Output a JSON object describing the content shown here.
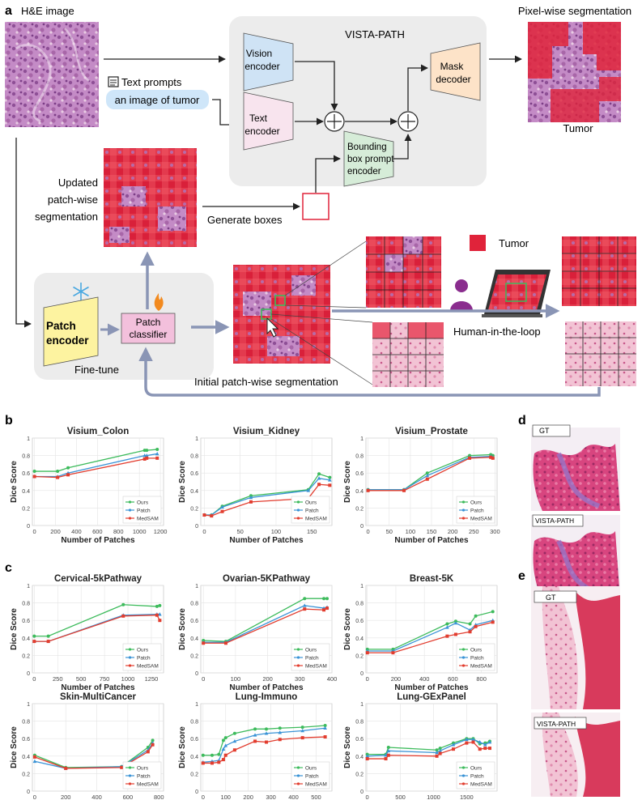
{
  "panel_a": {
    "label": "a",
    "he_image_title": "H&E image",
    "pixel_seg_title": "Pixel-wise segmentation",
    "tumor_caption": "Tumor",
    "vista_path_title": "VISTA-PATH",
    "vision_encoder": [
      "Vision",
      "encoder"
    ],
    "text_encoder": [
      "Text",
      "encoder"
    ],
    "mask_decoder": [
      "Mask",
      "decoder"
    ],
    "bbox_encoder": [
      "Bounding",
      "box prompt",
      "encoder"
    ],
    "text_prompts_label": "Text prompts",
    "prompt_example": "an image of tumor",
    "updated_seg": [
      "Updated",
      "patch-wise",
      "segmentation"
    ],
    "generate_boxes": "Generate boxes",
    "patch_encoder": [
      "Patch",
      "encoder"
    ],
    "patch_classifier": [
      "Patch",
      "classifier"
    ],
    "fine_tune": "Fine-tune",
    "initial_seg": "Initial patch-wise segmentation",
    "legend_tumor": "Tumor",
    "human_loop": "Human-in-the-loop",
    "colors": {
      "tumor": "#e0233a",
      "tissue": "#b878b8",
      "gray_box": "#ececec",
      "vision": "#cfe3f5",
      "text": "#f8e4ee",
      "mask": "#fde3c8",
      "bbox": "#d6ecd8",
      "patch_enc": "#fdf3a0",
      "patch_cls": "#f3c0dc",
      "prompt": "#cfe6f9",
      "arrow": "#8a95b5"
    }
  },
  "panel_b": {
    "label": "b"
  },
  "panel_c": {
    "label": "c"
  },
  "panel_d": {
    "label": "d",
    "gt": "GT",
    "pred": "VISTA-PATH"
  },
  "panel_e": {
    "label": "e",
    "gt": "GT",
    "pred": "VISTA-PATH"
  },
  "axis": {
    "xlabel": "Number of Patches",
    "ylabel": "Dice Score"
  },
  "series_colors": {
    "Ours": "#3dbb5c",
    "Patch": "#3a93d6",
    "MedSAM": "#e23d2f"
  },
  "chart_data": [
    {
      "type": "line",
      "title": "Visium_Colon",
      "xlabel": "Number of Patches",
      "ylabel": "Dice Score",
      "xlim": [
        -20,
        1230
      ],
      "ylim": [
        0,
        1.0
      ],
      "xticks": [
        0,
        200,
        400,
        600,
        800,
        1000,
        1200
      ],
      "yticks": [
        0,
        0.2,
        0.4,
        0.6,
        0.8,
        1.0
      ],
      "legend": "bottom-right",
      "series": [
        {
          "name": "Ours",
          "x": [
            0,
            220,
            320,
            1050,
            1070,
            1170
          ],
          "y": [
            0.62,
            0.62,
            0.66,
            0.86,
            0.86,
            0.87
          ]
        },
        {
          "name": "Patch",
          "x": [
            0,
            220,
            320,
            1050,
            1070,
            1170
          ],
          "y": [
            0.56,
            0.56,
            0.6,
            0.8,
            0.8,
            0.82
          ]
        },
        {
          "name": "MedSAM",
          "x": [
            0,
            220,
            320,
            1050,
            1070,
            1170
          ],
          "y": [
            0.56,
            0.55,
            0.58,
            0.76,
            0.77,
            0.77
          ]
        }
      ]
    },
    {
      "type": "line",
      "title": "Visium_Kidney",
      "xlabel": "Number of Patches",
      "ylabel": "Dice Score",
      "xlim": [
        -5,
        178
      ],
      "ylim": [
        0,
        1.0
      ],
      "xticks": [
        0,
        50,
        100,
        150
      ],
      "yticks": [
        0,
        0.2,
        0.4,
        0.6,
        0.8,
        1.0
      ],
      "legend": "bottom-right",
      "series": [
        {
          "name": "Ours",
          "x": [
            0,
            10,
            25,
            65,
            145,
            160,
            175
          ],
          "y": [
            0.12,
            0.12,
            0.22,
            0.34,
            0.41,
            0.59,
            0.55
          ]
        },
        {
          "name": "Patch",
          "x": [
            0,
            10,
            25,
            65,
            145,
            160,
            175
          ],
          "y": [
            0.12,
            0.12,
            0.21,
            0.32,
            0.4,
            0.54,
            0.52
          ]
        },
        {
          "name": "MedSAM",
          "x": [
            0,
            10,
            25,
            65,
            145,
            160,
            175
          ],
          "y": [
            0.12,
            0.11,
            0.16,
            0.27,
            0.31,
            0.47,
            0.46
          ]
        }
      ]
    },
    {
      "type": "line",
      "title": "Visium_Prostate",
      "xlabel": "Number of Patches",
      "ylabel": "Dice Score",
      "xlim": [
        -5,
        305
      ],
      "ylim": [
        0,
        1.0
      ],
      "xticks": [
        0,
        50,
        100,
        150,
        200,
        250,
        300
      ],
      "yticks": [
        0,
        0.2,
        0.4,
        0.6,
        0.8,
        1.0
      ],
      "legend": "bottom-right",
      "series": [
        {
          "name": "Ours",
          "x": [
            0,
            85,
            140,
            240,
            290,
            295
          ],
          "y": [
            0.41,
            0.41,
            0.6,
            0.8,
            0.81,
            0.8
          ]
        },
        {
          "name": "Patch",
          "x": [
            0,
            85,
            140,
            240,
            290,
            295
          ],
          "y": [
            0.41,
            0.41,
            0.57,
            0.78,
            0.79,
            0.78
          ]
        },
        {
          "name": "MedSAM",
          "x": [
            0,
            85,
            140,
            240,
            290,
            295
          ],
          "y": [
            0.4,
            0.4,
            0.53,
            0.77,
            0.78,
            0.77
          ]
        }
      ]
    },
    {
      "type": "line",
      "title": "Cervical-5kPathway",
      "xlabel": "Number of Patches",
      "ylabel": "Dice Score",
      "xlim": [
        -20,
        1380
      ],
      "ylim": [
        0,
        1.0
      ],
      "xticks": [
        0,
        250,
        500,
        750,
        1000,
        1250
      ],
      "yticks": [
        0,
        0.2,
        0.4,
        0.6,
        0.8,
        1.0
      ],
      "legend": "bottom-right",
      "series": [
        {
          "name": "Ours",
          "x": [
            0,
            150,
            950,
            1310,
            1340
          ],
          "y": [
            0.42,
            0.42,
            0.78,
            0.76,
            0.77
          ]
        },
        {
          "name": "Patch",
          "x": [
            0,
            150,
            950,
            1310,
            1340
          ],
          "y": [
            0.36,
            0.36,
            0.66,
            0.67,
            0.67
          ]
        },
        {
          "name": "MedSAM",
          "x": [
            0,
            150,
            950,
            1310,
            1340
          ],
          "y": [
            0.36,
            0.36,
            0.65,
            0.66,
            0.6
          ]
        }
      ]
    },
    {
      "type": "line",
      "title": "Ovarian-5KPathway",
      "xlabel": "Number of Patches",
      "ylabel": "Dice Score",
      "xlim": [
        -8,
        400
      ],
      "ylim": [
        0,
        1.0
      ],
      "xticks": [
        0,
        100,
        200,
        300,
        400
      ],
      "yticks": [
        0,
        0.2,
        0.4,
        0.6,
        0.8,
        1.0
      ],
      "legend": "bottom-right",
      "series": [
        {
          "name": "Ours",
          "x": [
            0,
            70,
            315,
            375,
            385
          ],
          "y": [
            0.37,
            0.36,
            0.85,
            0.85,
            0.85
          ]
        },
        {
          "name": "Patch",
          "x": [
            0,
            70,
            315,
            375,
            385
          ],
          "y": [
            0.35,
            0.35,
            0.77,
            0.74,
            0.75
          ]
        },
        {
          "name": "MedSAM",
          "x": [
            0,
            70,
            315,
            375,
            385
          ],
          "y": [
            0.34,
            0.34,
            0.73,
            0.72,
            0.74
          ]
        }
      ]
    },
    {
      "type": "line",
      "title": "Breast-5K",
      "xlabel": "Number of Patches",
      "ylabel": "Dice Score",
      "xlim": [
        -10,
        910
      ],
      "ylim": [
        0,
        1.0
      ],
      "xticks": [
        0,
        200,
        400,
        600,
        800
      ],
      "yticks": [
        0,
        0.2,
        0.4,
        0.6,
        0.8,
        1.0
      ],
      "legend": "bottom-right",
      "series": [
        {
          "name": "Ours",
          "x": [
            0,
            180,
            560,
            620,
            720,
            760,
            880
          ],
          "y": [
            0.27,
            0.27,
            0.56,
            0.59,
            0.56,
            0.65,
            0.7
          ]
        },
        {
          "name": "Patch",
          "x": [
            0,
            180,
            560,
            620,
            720,
            760,
            880
          ],
          "y": [
            0.25,
            0.25,
            0.52,
            0.57,
            0.49,
            0.55,
            0.6
          ]
        },
        {
          "name": "MedSAM",
          "x": [
            0,
            180,
            560,
            620,
            720,
            760,
            880
          ],
          "y": [
            0.23,
            0.23,
            0.42,
            0.44,
            0.47,
            0.53,
            0.58
          ]
        }
      ]
    },
    {
      "type": "line",
      "title": "Skin-MultiCancer",
      "xlabel": "Number of Patches",
      "ylabel": "Dice Score",
      "xlim": [
        -15,
        830
      ],
      "ylim": [
        0,
        1.0
      ],
      "xticks": [
        0,
        200,
        400,
        600,
        800
      ],
      "yticks": [
        0,
        0.2,
        0.4,
        0.6,
        0.8,
        1.0
      ],
      "legend": "bottom-right",
      "series": [
        {
          "name": "Ours",
          "x": [
            0,
            200,
            560,
            730,
            760
          ],
          "y": [
            0.41,
            0.27,
            0.28,
            0.5,
            0.58
          ]
        },
        {
          "name": "Patch",
          "x": [
            0,
            200,
            560,
            730,
            760
          ],
          "y": [
            0.34,
            0.26,
            0.28,
            0.47,
            0.55
          ]
        },
        {
          "name": "MedSAM",
          "x": [
            0,
            200,
            560,
            730,
            760
          ],
          "y": [
            0.39,
            0.26,
            0.27,
            0.45,
            0.53
          ]
        }
      ]
    },
    {
      "type": "line",
      "title": "Lung-Immuno",
      "xlabel": "Number of Patches",
      "ylabel": "Dice Score",
      "xlim": [
        -10,
        570
      ],
      "ylim": [
        0,
        1.0
      ],
      "xticks": [
        0,
        100,
        200,
        300,
        400,
        500
      ],
      "yticks": [
        0,
        0.2,
        0.4,
        0.6,
        0.8,
        1.0
      ],
      "legend": "bottom-right",
      "series": [
        {
          "name": "Ours",
          "x": [
            0,
            40,
            70,
            90,
            100,
            140,
            230,
            280,
            340,
            440,
            540
          ],
          "y": [
            0.41,
            0.41,
            0.42,
            0.58,
            0.61,
            0.66,
            0.71,
            0.71,
            0.72,
            0.73,
            0.75
          ]
        },
        {
          "name": "Patch",
          "x": [
            0,
            40,
            70,
            90,
            100,
            140,
            230,
            280,
            340,
            440,
            540
          ],
          "y": [
            0.33,
            0.34,
            0.35,
            0.48,
            0.52,
            0.57,
            0.64,
            0.66,
            0.67,
            0.69,
            0.72
          ]
        },
        {
          "name": "MedSAM",
          "x": [
            0,
            40,
            70,
            90,
            100,
            140,
            230,
            280,
            340,
            440,
            540
          ],
          "y": [
            0.32,
            0.32,
            0.33,
            0.36,
            0.41,
            0.47,
            0.57,
            0.56,
            0.59,
            0.61,
            0.62
          ]
        }
      ]
    },
    {
      "type": "line",
      "title": "Lung-GExPanel",
      "xlabel": "Number of Patches",
      "ylabel": "Dice Score",
      "xlim": [
        -20,
        1960
      ],
      "ylim": [
        0,
        1.0
      ],
      "xticks": [
        0,
        500,
        1000,
        1500
      ],
      "yticks": [
        0,
        0.2,
        0.4,
        0.6,
        0.8,
        1.0
      ],
      "legend": "bottom-right",
      "series": [
        {
          "name": "Ours",
          "x": [
            0,
            280,
            320,
            1050,
            1100,
            1300,
            1500,
            1600,
            1700,
            1780,
            1850
          ],
          "y": [
            0.42,
            0.42,
            0.5,
            0.47,
            0.49,
            0.55,
            0.6,
            0.6,
            0.54,
            0.55,
            0.57
          ]
        },
        {
          "name": "Patch",
          "x": [
            0,
            280,
            320,
            1050,
            1100,
            1300,
            1500,
            1600,
            1700,
            1780,
            1850
          ],
          "y": [
            0.4,
            0.41,
            0.46,
            0.44,
            0.46,
            0.53,
            0.59,
            0.59,
            0.56,
            0.53,
            0.56
          ]
        },
        {
          "name": "MedSAM",
          "x": [
            0,
            280,
            320,
            1050,
            1100,
            1300,
            1500,
            1600,
            1700,
            1780,
            1850
          ],
          "y": [
            0.37,
            0.37,
            0.41,
            0.4,
            0.43,
            0.48,
            0.55,
            0.56,
            0.48,
            0.49,
            0.49
          ]
        }
      ]
    }
  ]
}
